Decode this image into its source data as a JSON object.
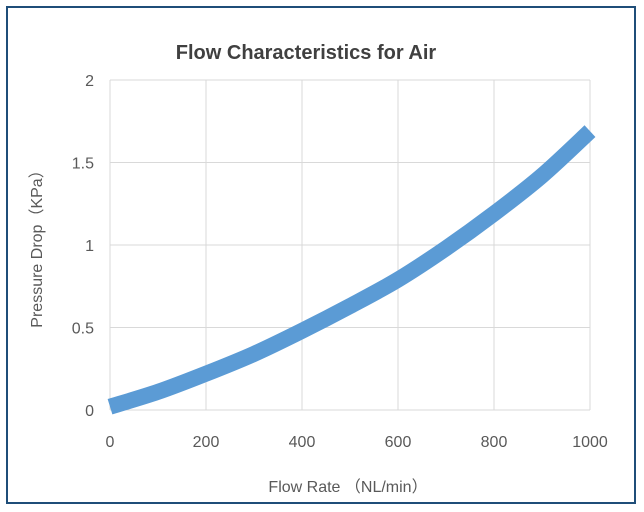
{
  "chart_data": {
    "type": "line",
    "title": "Flow Characteristics for Air",
    "xlabel": "Flow Rate （NL/min）",
    "ylabel": "Pressure Drop（KPa）",
    "xlim": [
      0,
      1000
    ],
    "ylim": [
      0,
      2
    ],
    "xticks": [
      "0",
      "200",
      "400",
      "600",
      "800",
      "1000"
    ],
    "yticks": [
      "0",
      "0.5",
      "1",
      "1.5",
      "2"
    ],
    "grid": true,
    "legend": "none",
    "series": [
      {
        "color": "#5b9bd5",
        "x": [
          0,
          100,
          200,
          300,
          400,
          500,
          600,
          700,
          800,
          900,
          1000
        ],
        "y": [
          0.02,
          0.11,
          0.22,
          0.34,
          0.48,
          0.63,
          0.79,
          0.98,
          1.19,
          1.42,
          1.69
        ]
      }
    ]
  }
}
